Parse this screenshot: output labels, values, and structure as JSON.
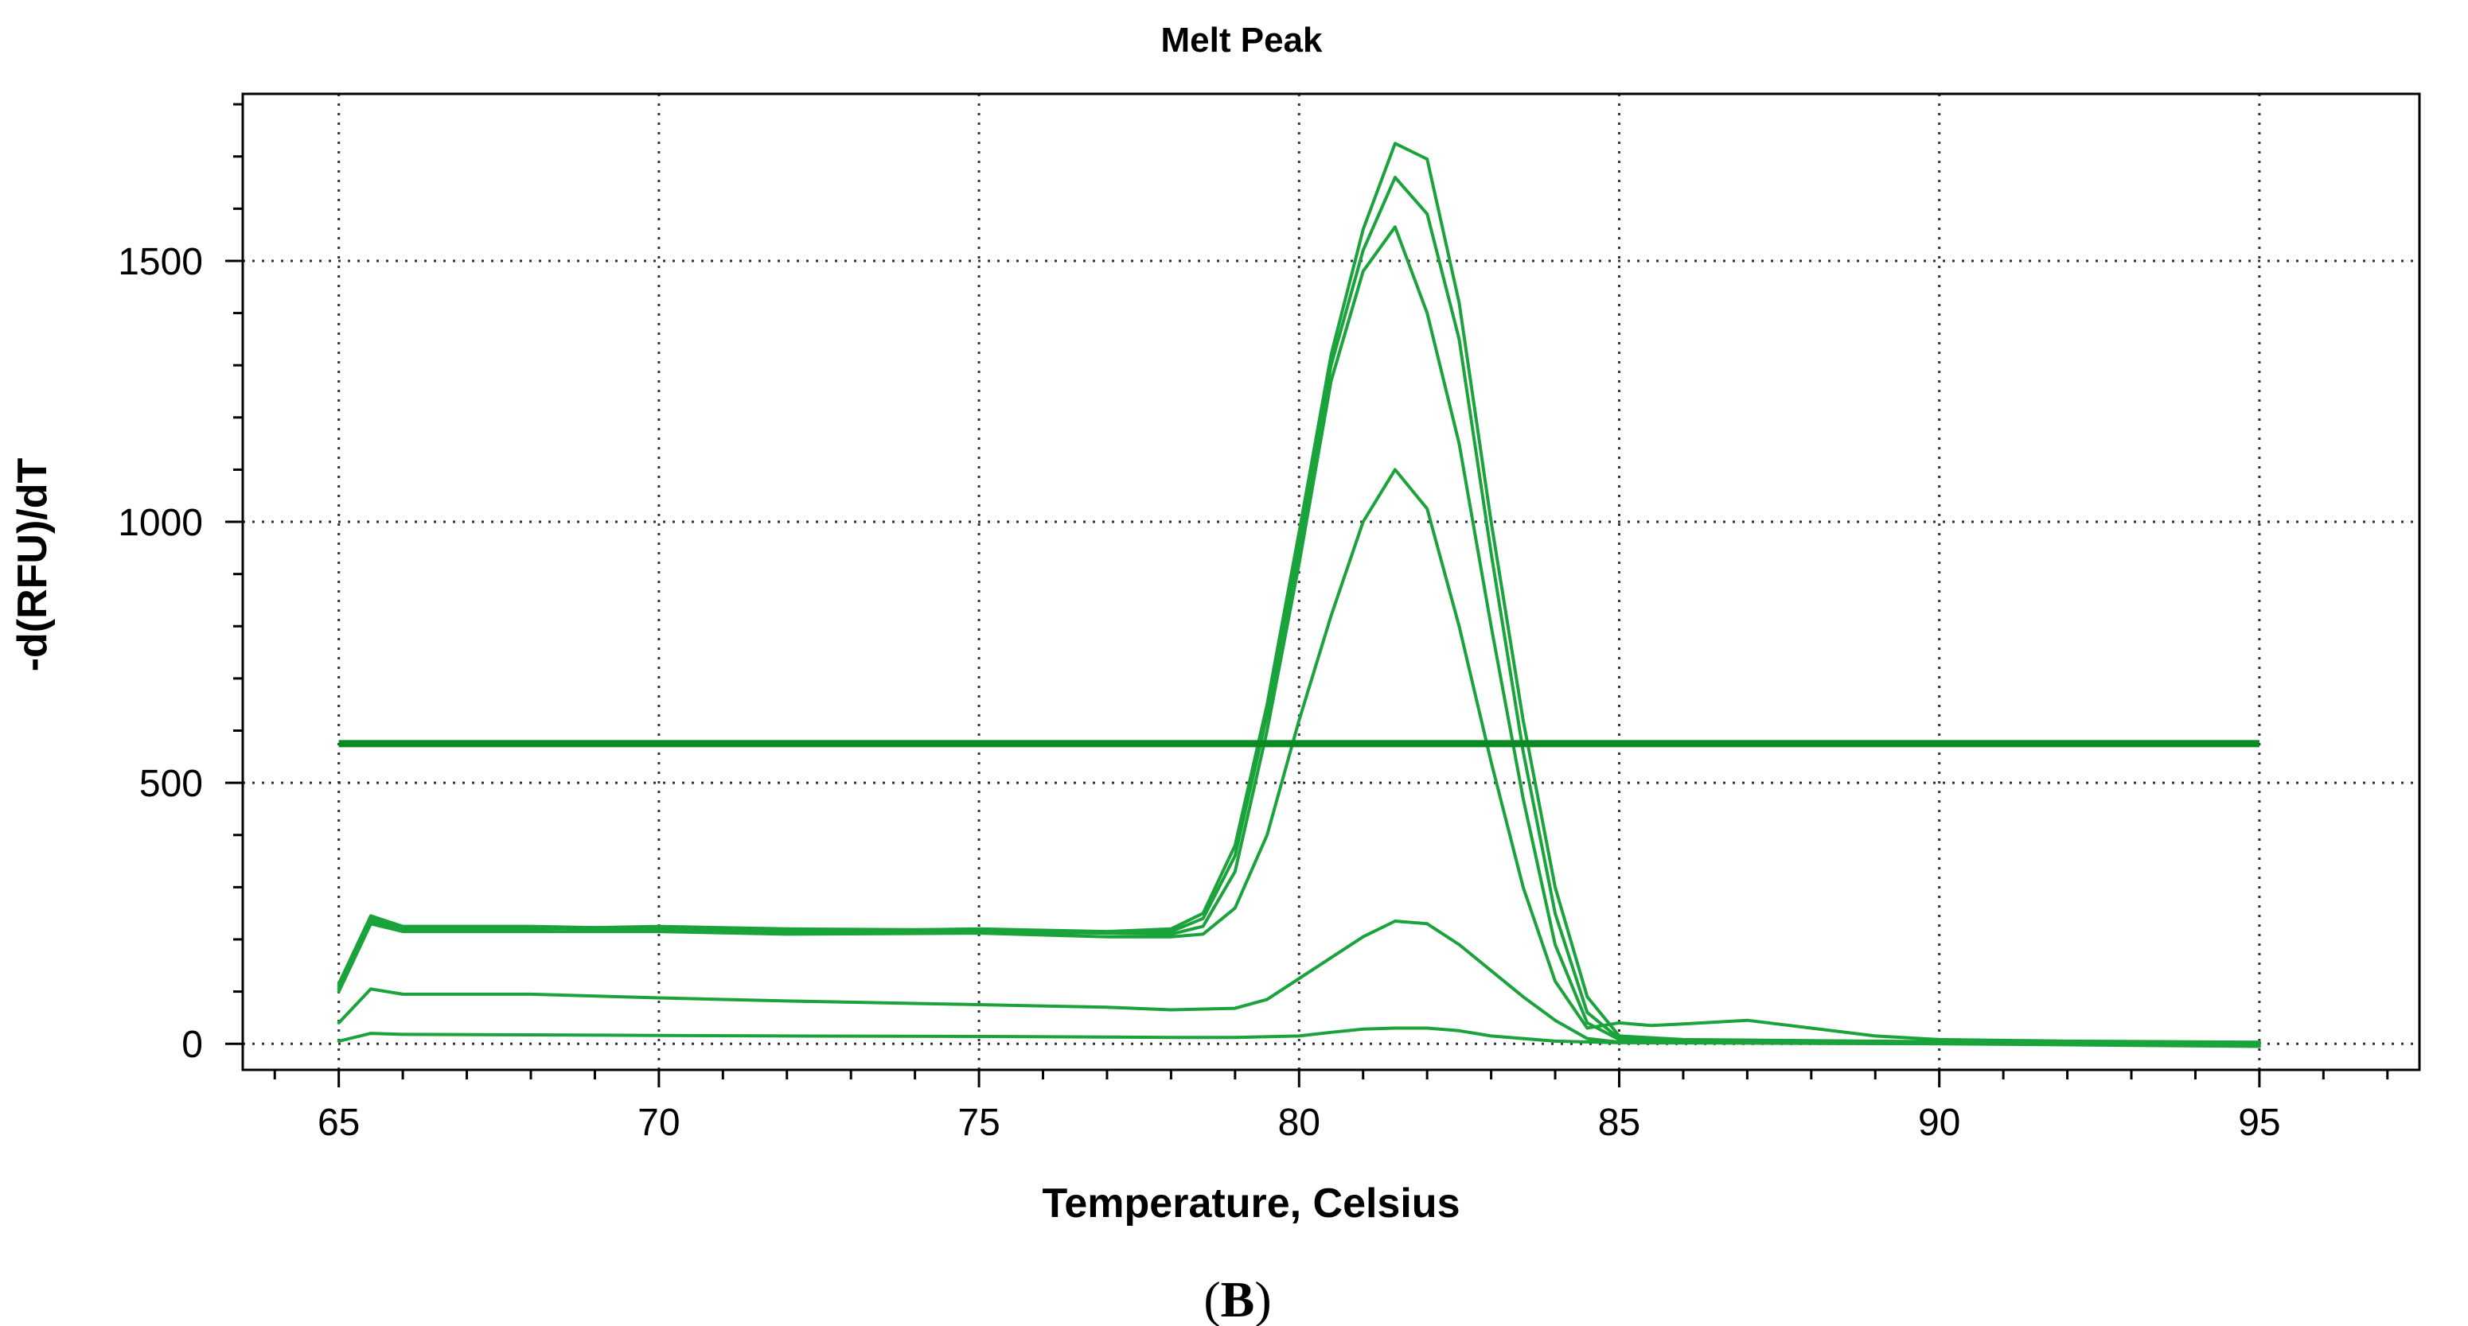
{
  "chart_data": {
    "type": "line",
    "title": "Melt Peak",
    "xlabel": "Temperature, Celsius",
    "ylabel": "-d(RFU)/dT",
    "caption_open": "(",
    "caption_bold": "B",
    "caption_close": ")",
    "xlim": [
      63.5,
      97.5
    ],
    "ylim": [
      -50,
      1820
    ],
    "x_ticks": [
      65,
      70,
      75,
      80,
      85,
      90,
      95
    ],
    "y_ticks": [
      0,
      500,
      1000,
      1500
    ],
    "x_minor_step": 1,
    "y_minor_step": 100,
    "grid": true,
    "legend": "none",
    "series_color": "#1aa33a",
    "threshold_color": "#0b8a23",
    "threshold": {
      "y": 575,
      "x_range": [
        65,
        95
      ]
    },
    "series": [
      {
        "points": [
          [
            65,
            115
          ],
          [
            65.5,
            245
          ],
          [
            66,
            225
          ],
          [
            68,
            225
          ],
          [
            70,
            220
          ],
          [
            72,
            215
          ],
          [
            75,
            220
          ],
          [
            77,
            215
          ],
          [
            78,
            220
          ],
          [
            78.5,
            250
          ],
          [
            79,
            380
          ],
          [
            79.5,
            650
          ],
          [
            80,
            980
          ],
          [
            80.5,
            1320
          ],
          [
            81,
            1560
          ],
          [
            81.5,
            1725
          ],
          [
            82,
            1695
          ],
          [
            82.5,
            1420
          ],
          [
            83,
            1000
          ],
          [
            83.5,
            620
          ],
          [
            84,
            300
          ],
          [
            84.5,
            90
          ],
          [
            85,
            15
          ],
          [
            86,
            8
          ],
          [
            88,
            6
          ],
          [
            90,
            4
          ],
          [
            92,
            3
          ],
          [
            95,
            2
          ]
        ]
      },
      {
        "points": [
          [
            65,
            110
          ],
          [
            65.5,
            240
          ],
          [
            66,
            220
          ],
          [
            68,
            222
          ],
          [
            70,
            218
          ],
          [
            72,
            212
          ],
          [
            75,
            215
          ],
          [
            77,
            212
          ],
          [
            78,
            215
          ],
          [
            78.5,
            240
          ],
          [
            79,
            360
          ],
          [
            79.5,
            630
          ],
          [
            80,
            950
          ],
          [
            80.5,
            1300
          ],
          [
            81,
            1520
          ],
          [
            81.5,
            1660
          ],
          [
            82,
            1590
          ],
          [
            82.5,
            1350
          ],
          [
            83,
            940
          ],
          [
            83.5,
            560
          ],
          [
            84,
            250
          ],
          [
            84.5,
            60
          ],
          [
            85,
            10
          ],
          [
            86,
            6
          ],
          [
            88,
            5
          ],
          [
            90,
            3
          ],
          [
            92,
            2
          ],
          [
            95,
            1
          ]
        ]
      },
      {
        "points": [
          [
            65,
            105
          ],
          [
            65.5,
            235
          ],
          [
            66,
            218
          ],
          [
            68,
            220
          ],
          [
            70,
            225
          ],
          [
            72,
            220
          ],
          [
            75,
            218
          ],
          [
            77,
            212
          ],
          [
            78,
            210
          ],
          [
            78.5,
            225
          ],
          [
            79,
            330
          ],
          [
            79.5,
            600
          ],
          [
            80,
            920
          ],
          [
            80.5,
            1270
          ],
          [
            81,
            1480
          ],
          [
            81.5,
            1565
          ],
          [
            82,
            1400
          ],
          [
            82.5,
            1150
          ],
          [
            83,
            800
          ],
          [
            83.5,
            470
          ],
          [
            84,
            190
          ],
          [
            84.5,
            40
          ],
          [
            85,
            8
          ],
          [
            86,
            5
          ],
          [
            88,
            4
          ],
          [
            90,
            3
          ],
          [
            92,
            2
          ],
          [
            95,
            1
          ]
        ]
      },
      {
        "points": [
          [
            65,
            100
          ],
          [
            65.5,
            230
          ],
          [
            66,
            215
          ],
          [
            68,
            215
          ],
          [
            70,
            215
          ],
          [
            72,
            210
          ],
          [
            75,
            212
          ],
          [
            77,
            205
          ],
          [
            78,
            205
          ],
          [
            78.5,
            210
          ],
          [
            79,
            260
          ],
          [
            79.5,
            400
          ],
          [
            80,
            620
          ],
          [
            80.5,
            820
          ],
          [
            81,
            1000
          ],
          [
            81.5,
            1100
          ],
          [
            82,
            1025
          ],
          [
            82.5,
            800
          ],
          [
            83,
            540
          ],
          [
            83.5,
            300
          ],
          [
            84,
            120
          ],
          [
            84.5,
            30
          ],
          [
            85,
            40
          ],
          [
            85.5,
            35
          ],
          [
            86,
            38
          ],
          [
            87,
            45
          ],
          [
            88,
            30
          ],
          [
            89,
            15
          ],
          [
            90,
            8
          ],
          [
            92,
            5
          ],
          [
            95,
            3
          ]
        ]
      },
      {
        "points": [
          [
            65,
            40
          ],
          [
            65.5,
            105
          ],
          [
            66,
            95
          ],
          [
            68,
            95
          ],
          [
            70,
            88
          ],
          [
            72,
            82
          ],
          [
            75,
            75
          ],
          [
            77,
            70
          ],
          [
            78,
            65
          ],
          [
            79,
            68
          ],
          [
            79.5,
            85
          ],
          [
            80,
            125
          ],
          [
            80.5,
            165
          ],
          [
            81,
            205
          ],
          [
            81.5,
            235
          ],
          [
            82,
            230
          ],
          [
            82.5,
            190
          ],
          [
            83,
            140
          ],
          [
            83.5,
            90
          ],
          [
            84,
            45
          ],
          [
            84.5,
            10
          ],
          [
            85,
            3
          ],
          [
            88,
            2
          ],
          [
            90,
            1
          ],
          [
            95,
            0
          ]
        ]
      },
      {
        "points": [
          [
            65,
            5
          ],
          [
            65.5,
            20
          ],
          [
            66,
            18
          ],
          [
            68,
            17
          ],
          [
            70,
            16
          ],
          [
            72,
            15
          ],
          [
            75,
            14
          ],
          [
            77,
            13
          ],
          [
            78,
            12
          ],
          [
            79,
            12
          ],
          [
            80,
            15
          ],
          [
            80.5,
            22
          ],
          [
            81,
            28
          ],
          [
            81.5,
            30
          ],
          [
            82,
            30
          ],
          [
            82.5,
            25
          ],
          [
            83,
            15
          ],
          [
            84,
            5
          ],
          [
            85,
            2
          ],
          [
            90,
            0
          ],
          [
            95,
            -5
          ]
        ]
      }
    ]
  }
}
